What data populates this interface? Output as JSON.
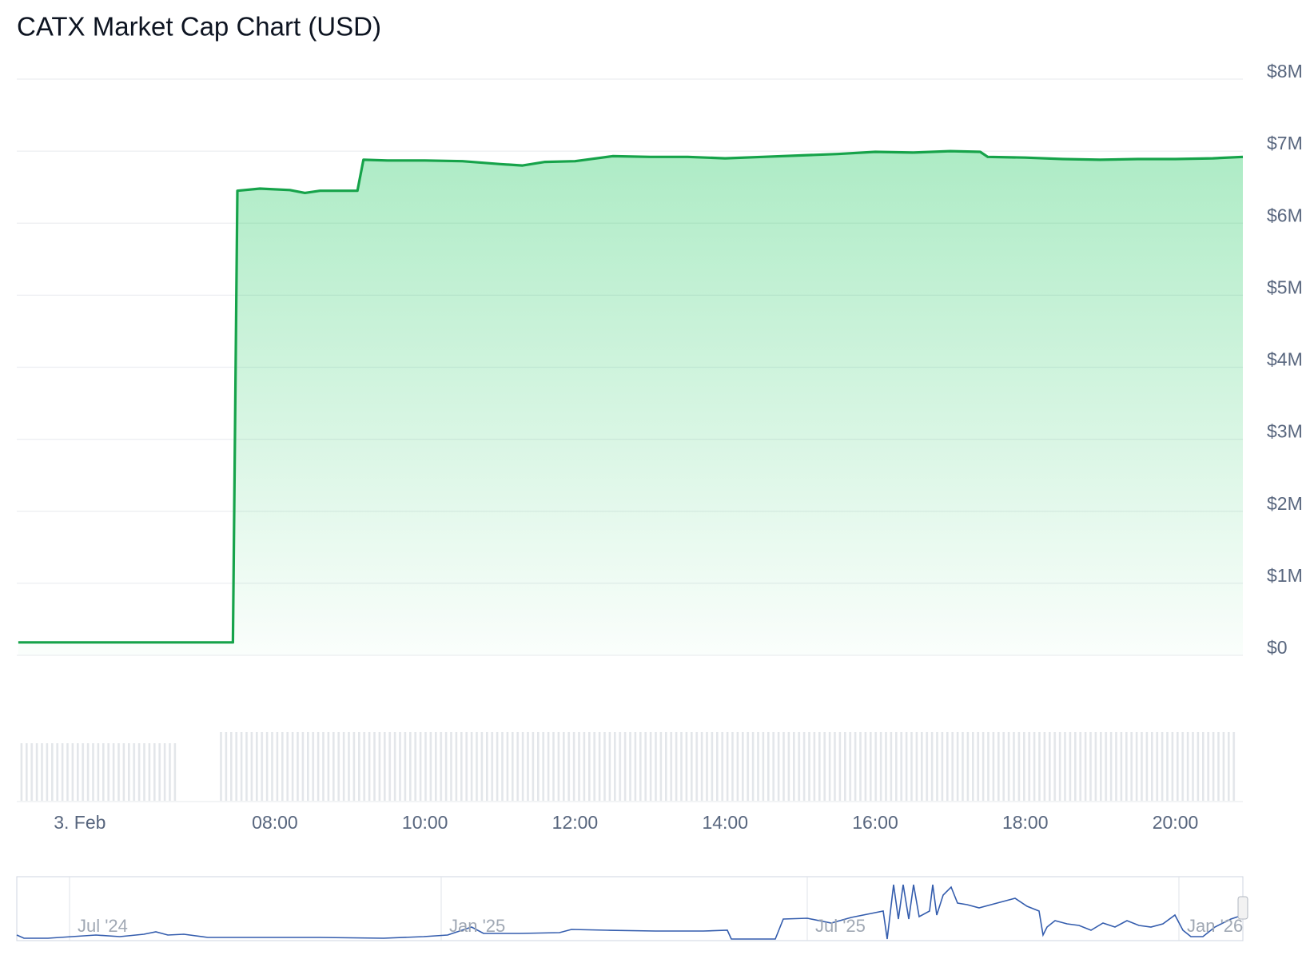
{
  "chart_data": {
    "type": "area",
    "title": "CATX Market Cap Chart (USD)",
    "x": [
      4.58,
      7.44,
      7.5,
      7.8,
      8.2,
      8.4,
      8.6,
      9.1,
      9.18,
      9.5,
      10.0,
      10.5,
      11.0,
      11.3,
      11.6,
      12.0,
      12.5,
      13.0,
      13.5,
      14.0,
      14.5,
      15.0,
      15.5,
      16.0,
      16.5,
      17.0,
      17.4,
      17.5,
      18.0,
      18.5,
      19.0,
      19.5,
      20.0,
      20.5,
      20.9
    ],
    "values": [
      180000,
      180000,
      6450000,
      6480000,
      6460000,
      6420000,
      6450000,
      6450000,
      6880000,
      6870000,
      6870000,
      6860000,
      6820000,
      6800000,
      6850000,
      6860000,
      6930000,
      6920000,
      6920000,
      6900000,
      6920000,
      6940000,
      6960000,
      6990000,
      6980000,
      7000000,
      6990000,
      6920000,
      6910000,
      6890000,
      6880000,
      6890000,
      6890000,
      6900000,
      6920000
    ],
    "color": "#16a34a",
    "xlim": [
      4.56,
      20.9
    ],
    "xticks": [
      {
        "value": 5.4,
        "label": "3. Feb"
      },
      {
        "value": 8,
        "label": "08:00"
      },
      {
        "value": 10,
        "label": "10:00"
      },
      {
        "value": 12,
        "label": "12:00"
      },
      {
        "value": 14,
        "label": "14:00"
      },
      {
        "value": 16,
        "label": "16:00"
      },
      {
        "value": 18,
        "label": "18:00"
      },
      {
        "value": 20,
        "label": "20:00"
      }
    ],
    "ylim": [
      0,
      8000000
    ],
    "yticks": [
      {
        "value": 0,
        "label": "$0"
      },
      {
        "value": 1000000,
        "label": "$1M"
      },
      {
        "value": 2000000,
        "label": "$2M"
      },
      {
        "value": 3000000,
        "label": "$3M"
      },
      {
        "value": 4000000,
        "label": "$4M"
      },
      {
        "value": 5000000,
        "label": "$5M"
      },
      {
        "value": 6000000,
        "label": "$6M"
      },
      {
        "value": 7000000,
        "label": "$7M"
      },
      {
        "value": 8000000,
        "label": "$8M"
      }
    ],
    "grid": true,
    "navigator_labels": [
      "Jul '24",
      "Jan '25",
      "Jul '25",
      "Jan '26"
    ]
  }
}
